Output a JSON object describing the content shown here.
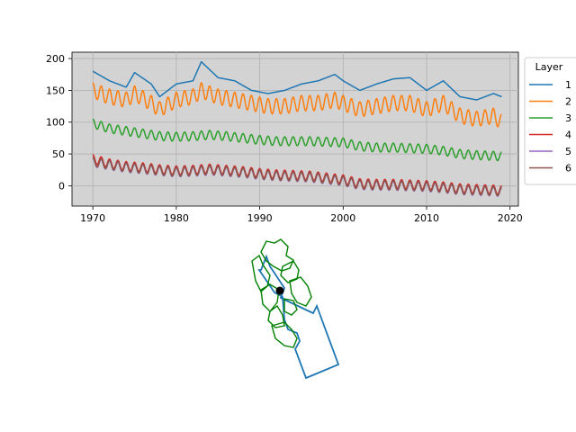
{
  "chart_data": [
    {
      "type": "line",
      "title": "",
      "xlabel": "",
      "ylabel": "",
      "xlim": [
        1967.5,
        2021.0
      ],
      "ylim": [
        -32,
        210
      ],
      "xticks": [
        1970,
        1980,
        1990,
        2000,
        2010,
        2020
      ],
      "xtick_labels": [
        "1970",
        "1980",
        "1990",
        "2000",
        "2010",
        "2020"
      ],
      "yticks": [
        0,
        50,
        100,
        150,
        200
      ],
      "ytick_labels": [
        "0",
        "50",
        "100",
        "150",
        "200"
      ],
      "grid": true,
      "background": "#d3d3d3",
      "legend": {
        "title": "Layer",
        "placement": "outside-right"
      },
      "series": [
        {
          "name": "1",
          "color": "#1f77b4",
          "x": [
            1970,
            1972,
            1974,
            1975,
            1977,
            1978,
            1980,
            1982,
            1983,
            1985,
            1987,
            1989,
            1991,
            1993,
            1995,
            1997,
            1999,
            2000,
            2002,
            2004,
            2006,
            2008,
            2010,
            2012,
            2014,
            2016,
            2018,
            2019
          ],
          "values": [
            180,
            165,
            155,
            178,
            160,
            140,
            160,
            165,
            195,
            170,
            165,
            150,
            145,
            150,
            160,
            165,
            175,
            165,
            150,
            160,
            168,
            170,
            150,
            165,
            140,
            135,
            145,
            140
          ]
        },
        {
          "name": "2",
          "color": "#ff7f0e",
          "x": [
            1970,
            1972,
            1974,
            1975,
            1977,
            1978,
            1980,
            1982,
            1983,
            1985,
            1987,
            1989,
            1991,
            1993,
            1995,
            1997,
            1999,
            2000,
            2002,
            2004,
            2006,
            2008,
            2010,
            2012,
            2014,
            2016,
            2018,
            2019
          ],
          "values": [
            150,
            140,
            135,
            145,
            130,
            120,
            135,
            140,
            150,
            140,
            135,
            130,
            125,
            125,
            130,
            130,
            135,
            130,
            120,
            125,
            130,
            130,
            120,
            130,
            110,
            105,
            110,
            100
          ],
          "amplitude": 12
        },
        {
          "name": "3",
          "color": "#2ca02c",
          "x": [
            1970,
            1972,
            1974,
            1976,
            1978,
            1980,
            1982,
            1984,
            1986,
            1988,
            1990,
            1992,
            1994,
            1996,
            1998,
            2000,
            2002,
            2004,
            2006,
            2008,
            2010,
            2012,
            2014,
            2016,
            2018,
            2019
          ],
          "values": [
            98,
            90,
            86,
            82,
            78,
            77,
            78,
            80,
            78,
            75,
            72,
            70,
            70,
            70,
            69,
            68,
            62,
            60,
            60,
            59,
            58,
            55,
            50,
            48,
            47,
            46
          ],
          "amplitude": 7
        },
        {
          "name": "4",
          "color": "#d62728",
          "x": [
            1970,
            1972,
            1974,
            1976,
            1978,
            1980,
            1982,
            1984,
            1986,
            1988,
            1990,
            1992,
            1994,
            1996,
            1998,
            2000,
            2002,
            2004,
            2006,
            2008,
            2010,
            2012,
            2014,
            2016,
            2018,
            2019
          ],
          "values": [
            42,
            35,
            31,
            29,
            26,
            24,
            25,
            27,
            25,
            23,
            20,
            18,
            17,
            16,
            13,
            10,
            4,
            3,
            3,
            2,
            1,
            -1,
            -4,
            -5,
            -6,
            -7
          ],
          "amplitude": 7
        },
        {
          "name": "5",
          "color": "#9467bd",
          "x": [
            1970,
            1972,
            1974,
            1976,
            1978,
            1980,
            1982,
            1984,
            1986,
            1988,
            1990,
            1992,
            1994,
            1996,
            1998,
            2000,
            2002,
            2004,
            2006,
            2008,
            2010,
            2012,
            2014,
            2016,
            2018,
            2019
          ],
          "values": [
            37,
            32,
            28,
            26,
            23,
            21,
            22,
            24,
            22,
            20,
            17,
            15,
            14,
            13,
            10,
            7,
            1,
            0,
            0,
            -1,
            -2,
            -4,
            -7,
            -8,
            -9,
            -10
          ],
          "amplitude": 7
        },
        {
          "name": "6",
          "color": "#8c564b",
          "x": [
            1970,
            1972,
            1974,
            1976,
            1978,
            1980,
            1982,
            1984,
            1986,
            1988,
            1990,
            1992,
            1994,
            1996,
            1998,
            2000,
            2002,
            2004,
            2006,
            2008,
            2010,
            2012,
            2014,
            2016,
            2018,
            2019
          ],
          "values": [
            38,
            33,
            29,
            27,
            24,
            22,
            23,
            25,
            23,
            21,
            18,
            16,
            15,
            14,
            11,
            8,
            2,
            1,
            1,
            0,
            -1,
            -3,
            -6,
            -7,
            -8,
            -9
          ],
          "amplitude": 7
        }
      ]
    },
    {
      "type": "map",
      "title": "",
      "grid": false,
      "layers": [
        {
          "name": "",
          "color": "#1f77b4"
        },
        {
          "name": "",
          "color": "#008000"
        },
        {
          "name": "",
          "color": "#000000"
        }
      ]
    }
  ]
}
